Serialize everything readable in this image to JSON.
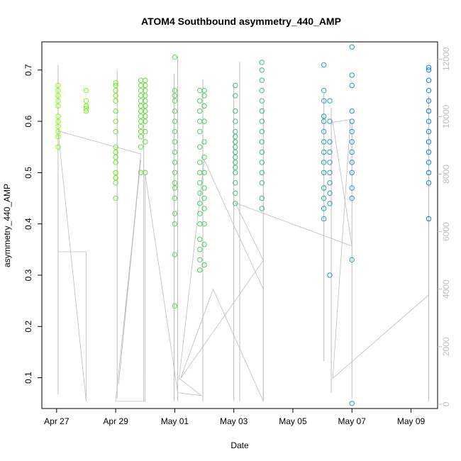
{
  "chart_data": {
    "type": "scatter",
    "title": "ATOM4 Southbound asymmetry_440_AMP",
    "xlabel": "Date",
    "ylabel": "asymmetry_440_AMP",
    "x_ticks": [
      "Apr 27",
      "Apr 29",
      "May 01",
      "May 03",
      "May 05",
      "May 07",
      "May 09"
    ],
    "y_ticks": [
      0.1,
      0.2,
      0.3,
      0.4,
      0.5,
      0.6,
      0.7
    ],
    "y2_ticks": [
      0,
      2000,
      4000,
      6000,
      8000,
      10000,
      12000
    ],
    "xlim": [
      -0.5,
      12.9
    ],
    "ylim": [
      0.04,
      0.755
    ],
    "y2lim": [
      -150,
      12600
    ],
    "grid": false,
    "legend": "none",
    "colors": {
      "start": "#80ff00",
      "end": "#0080ff",
      "secondary_line": "#bdbdbd"
    },
    "clusters": [
      {
        "x": 0.05,
        "y": [
          0.55,
          0.57,
          0.58,
          0.59,
          0.6,
          0.61,
          0.63,
          0.64,
          0.65,
          0.66,
          0.67
        ]
      },
      {
        "x": 1.0,
        "y": [
          0.62,
          0.625,
          0.63,
          0.64,
          0.66
        ]
      },
      {
        "x": 2.0,
        "y": [
          0.45,
          0.48,
          0.49,
          0.5,
          0.52,
          0.53,
          0.54,
          0.55,
          0.58,
          0.6,
          0.62,
          0.64,
          0.65,
          0.66,
          0.67,
          0.675
        ]
      },
      {
        "x": 2.85,
        "y": [
          0.5,
          0.55,
          0.57,
          0.58,
          0.59,
          0.6,
          0.61,
          0.62,
          0.63,
          0.64,
          0.65,
          0.66,
          0.67,
          0.68
        ]
      },
      {
        "x": 3.0,
        "y": [
          0.5,
          0.56,
          0.58,
          0.6,
          0.61,
          0.62,
          0.63,
          0.64,
          0.65,
          0.66,
          0.67,
          0.68
        ]
      },
      {
        "x": 4.0,
        "y": [
          0.24,
          0.34,
          0.4,
          0.42,
          0.45,
          0.47,
          0.48,
          0.5,
          0.52,
          0.54,
          0.56,
          0.58,
          0.6,
          0.62,
          0.64,
          0.65,
          0.66,
          0.725
        ]
      },
      {
        "x": 4.85,
        "y": [
          0.31,
          0.33,
          0.35,
          0.37,
          0.4,
          0.42,
          0.44,
          0.46,
          0.48,
          0.5,
          0.52,
          0.55,
          0.58,
          0.6,
          0.62,
          0.64,
          0.66
        ]
      },
      {
        "x": 5.0,
        "y": [
          0.32,
          0.36,
          0.4,
          0.43,
          0.45,
          0.47,
          0.5,
          0.53,
          0.56,
          0.6,
          0.63,
          0.65,
          0.66
        ]
      },
      {
        "x": 6.05,
        "y": [
          0.44,
          0.46,
          0.48,
          0.5,
          0.51,
          0.52,
          0.53,
          0.54,
          0.55,
          0.56,
          0.57,
          0.58,
          0.6,
          0.62,
          0.65,
          0.67
        ]
      },
      {
        "x": 6.95,
        "y": [
          0.43,
          0.45,
          0.48,
          0.5,
          0.52,
          0.54,
          0.56,
          0.58,
          0.6,
          0.62,
          0.64,
          0.66,
          0.68,
          0.7,
          0.715
        ]
      },
      {
        "x": 9.05,
        "y": [
          0.41,
          0.43,
          0.45,
          0.47,
          0.5,
          0.52,
          0.54,
          0.56,
          0.58,
          0.6,
          0.61,
          0.64,
          0.66,
          0.71
        ]
      },
      {
        "x": 9.25,
        "y": [
          0.3,
          0.44,
          0.46,
          0.48,
          0.5,
          0.52,
          0.54,
          0.56,
          0.6,
          0.64
        ]
      },
      {
        "x": 10.0,
        "y": [
          0.05,
          0.33,
          0.45,
          0.47,
          0.5,
          0.52,
          0.54,
          0.56,
          0.58,
          0.6,
          0.62,
          0.67,
          0.69,
          0.745
        ]
      },
      {
        "x": 12.6,
        "y": [
          0.41,
          0.48,
          0.5,
          0.52,
          0.54,
          0.56,
          0.58,
          0.6,
          0.62,
          0.64,
          0.66,
          0.68,
          0.7,
          0.705
        ]
      }
    ],
    "secondary_series": {
      "spikes": [
        {
          "x": 0.05,
          "y_lo": 350,
          "y_hi": 11800
        },
        {
          "x": 2.05,
          "y_lo": 200,
          "y_hi": 11600
        },
        {
          "x": 2.95,
          "y_lo": 100,
          "y_hi": 11200
        },
        {
          "x": 3.98,
          "y_lo": 100,
          "y_hi": 11500
        },
        {
          "x": 4.1,
          "y_lo": 100,
          "y_hi": 12100
        },
        {
          "x": 4.95,
          "y_lo": 100,
          "y_hi": 11300
        },
        {
          "x": 6.0,
          "y_lo": 100,
          "y_hi": 11100
        },
        {
          "x": 6.2,
          "y_lo": 100,
          "y_hi": 11900
        },
        {
          "x": 7.0,
          "y_lo": 100,
          "y_hi": 10500
        },
        {
          "x": 9.05,
          "y_lo": 1500,
          "y_hi": 10800
        },
        {
          "x": 9.3,
          "y_lo": 400,
          "y_hi": 10300
        },
        {
          "x": 10.0,
          "y_lo": 200,
          "y_hi": 9800
        },
        {
          "x": 12.6,
          "y_lo": 200,
          "y_hi": 10700
        }
      ],
      "path": [
        [
          0.05,
          350
        ],
        [
          0.05,
          5300
        ],
        [
          1.0,
          5300
        ],
        [
          1.0,
          100
        ],
        [
          0.05,
          9500
        ],
        [
          2.85,
          8700
        ],
        [
          2.1,
          700
        ],
        [
          2.85,
          8500
        ],
        [
          2.0,
          100
        ],
        [
          3.0,
          100
        ],
        [
          3.0,
          8000
        ],
        [
          4.1,
          400
        ],
        [
          4.9,
          300
        ],
        [
          4.15,
          900
        ],
        [
          5.0,
          8500
        ],
        [
          6.1,
          6000
        ],
        [
          7.0,
          4000
        ],
        [
          7.0,
          100
        ],
        [
          5.3,
          4000
        ],
        [
          4.2,
          900
        ],
        [
          7.0,
          5000
        ],
        [
          6.05,
          7000
        ],
        [
          10.0,
          5500
        ],
        [
          9.35,
          9800
        ],
        [
          9.95,
          9900
        ],
        [
          9.35,
          900
        ],
        [
          12.6,
          3800
        ],
        [
          12.6,
          100
        ]
      ]
    }
  }
}
